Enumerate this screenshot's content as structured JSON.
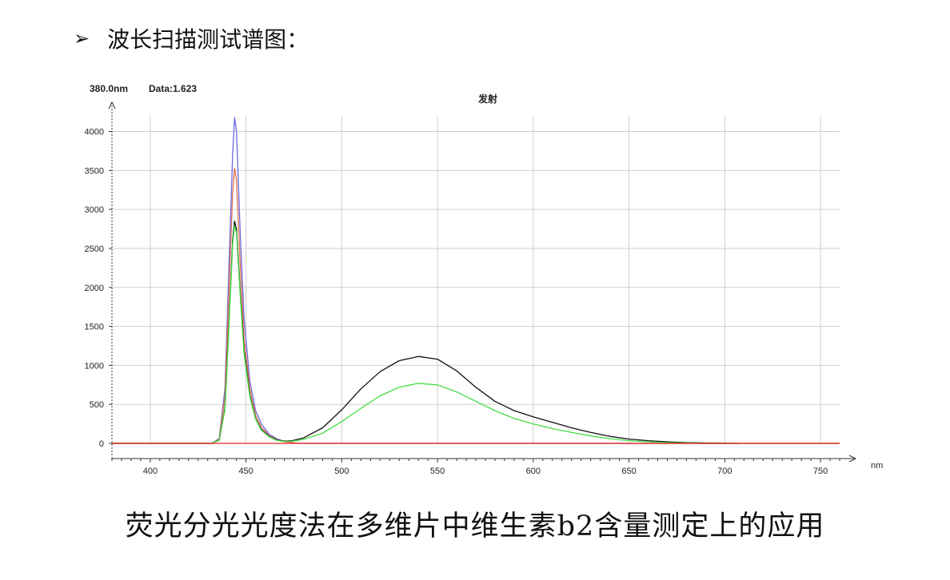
{
  "heading": {
    "bullet": "➢",
    "text": "波长扫描测试谱图："
  },
  "caption": "荧光分光光度法在多维片中维生素b2含量测定上的应用",
  "chart_data": {
    "type": "line",
    "title": "发射",
    "readout": {
      "wavelength": "380.0nm",
      "data": "Data:1.623"
    },
    "xlabel": "nm",
    "ylabel": "",
    "xlim": [
      380,
      760
    ],
    "ylim": [
      0,
      4200
    ],
    "x_ticks": [
      400,
      450,
      500,
      550,
      600,
      650,
      700,
      750
    ],
    "y_ticks": [
      0,
      500,
      1000,
      1500,
      2000,
      2500,
      3000,
      3500,
      4000
    ],
    "grid": true,
    "series": [
      {
        "color": "#6a6ae0",
        "points": [
          [
            380,
            0
          ],
          [
            432,
            0
          ],
          [
            436,
            60
          ],
          [
            439,
            700
          ],
          [
            441,
            2200
          ],
          [
            443,
            3700
          ],
          [
            444,
            4180
          ],
          [
            445,
            4000
          ],
          [
            447,
            2700
          ],
          [
            449,
            1600
          ],
          [
            452,
            800
          ],
          [
            455,
            420
          ],
          [
            458,
            250
          ],
          [
            462,
            120
          ],
          [
            466,
            60
          ],
          [
            470,
            25
          ],
          [
            476,
            5
          ],
          [
            480,
            0
          ],
          [
            760,
            0
          ]
        ]
      },
      {
        "color": "#e07050",
        "points": [
          [
            380,
            0
          ],
          [
            432,
            0
          ],
          [
            436,
            50
          ],
          [
            439,
            600
          ],
          [
            441,
            1900
          ],
          [
            443,
            3200
          ],
          [
            444,
            3530
          ],
          [
            445,
            3380
          ],
          [
            447,
            2300
          ],
          [
            449,
            1350
          ],
          [
            452,
            700
          ],
          [
            455,
            360
          ],
          [
            458,
            210
          ],
          [
            462,
            100
          ],
          [
            466,
            50
          ],
          [
            470,
            20
          ],
          [
            476,
            5
          ],
          [
            480,
            0
          ],
          [
            760,
            0
          ]
        ]
      },
      {
        "color": "#111111",
        "points": [
          [
            380,
            0
          ],
          [
            432,
            0
          ],
          [
            436,
            40
          ],
          [
            439,
            450
          ],
          [
            441,
            1500
          ],
          [
            443,
            2600
          ],
          [
            444,
            2850
          ],
          [
            445,
            2750
          ],
          [
            447,
            1950
          ],
          [
            449,
            1200
          ],
          [
            452,
            620
          ],
          [
            455,
            320
          ],
          [
            458,
            180
          ],
          [
            462,
            90
          ],
          [
            466,
            45
          ],
          [
            470,
            30
          ],
          [
            474,
            35
          ],
          [
            480,
            70
          ],
          [
            490,
            200
          ],
          [
            500,
            430
          ],
          [
            510,
            700
          ],
          [
            520,
            920
          ],
          [
            530,
            1060
          ],
          [
            540,
            1115
          ],
          [
            550,
            1080
          ],
          [
            560,
            930
          ],
          [
            570,
            720
          ],
          [
            580,
            540
          ],
          [
            590,
            420
          ],
          [
            600,
            340
          ],
          [
            610,
            270
          ],
          [
            620,
            200
          ],
          [
            630,
            140
          ],
          [
            640,
            90
          ],
          [
            650,
            55
          ],
          [
            660,
            35
          ],
          [
            670,
            20
          ],
          [
            680,
            10
          ],
          [
            690,
            5
          ],
          [
            700,
            2
          ],
          [
            707,
            0
          ]
        ]
      },
      {
        "color": "#44dd44",
        "points": [
          [
            380,
            0
          ],
          [
            432,
            0
          ],
          [
            436,
            40
          ],
          [
            439,
            430
          ],
          [
            441,
            1450
          ],
          [
            443,
            2550
          ],
          [
            444,
            2790
          ],
          [
            445,
            2700
          ],
          [
            447,
            1900
          ],
          [
            449,
            1150
          ],
          [
            452,
            600
          ],
          [
            455,
            310
          ],
          [
            458,
            170
          ],
          [
            462,
            85
          ],
          [
            466,
            40
          ],
          [
            470,
            25
          ],
          [
            474,
            28
          ],
          [
            480,
            50
          ],
          [
            490,
            130
          ],
          [
            500,
            280
          ],
          [
            510,
            450
          ],
          [
            520,
            610
          ],
          [
            530,
            720
          ],
          [
            540,
            770
          ],
          [
            550,
            750
          ],
          [
            560,
            660
          ],
          [
            570,
            540
          ],
          [
            580,
            420
          ],
          [
            590,
            320
          ],
          [
            600,
            250
          ],
          [
            610,
            190
          ],
          [
            620,
            140
          ],
          [
            630,
            95
          ],
          [
            640,
            60
          ],
          [
            650,
            35
          ],
          [
            660,
            20
          ],
          [
            670,
            10
          ],
          [
            680,
            5
          ],
          [
            690,
            0
          ],
          [
            760,
            0
          ]
        ]
      },
      {
        "color": "#ee2222",
        "points": [
          [
            380,
            0
          ],
          [
            760,
            0
          ]
        ]
      }
    ]
  }
}
